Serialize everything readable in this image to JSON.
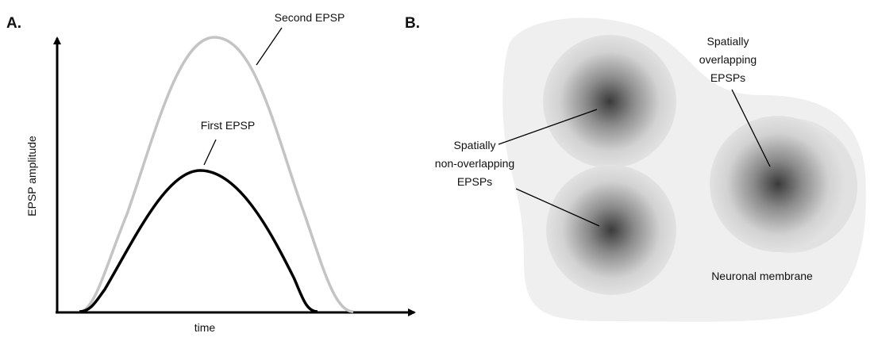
{
  "panel_a": {
    "label": "A.",
    "y_axis_label": "EPSP amplitude",
    "x_axis_label": "time",
    "curves": [
      {
        "name": "Second EPSP"
      },
      {
        "name": "First EPSP"
      }
    ]
  },
  "panel_b": {
    "label": "B.",
    "annotations": [
      {
        "lines": [
          "Spatially",
          "non-overlapping",
          "EPSPs"
        ]
      },
      {
        "lines": [
          "Spatially",
          "overlapping",
          "EPSPs"
        ]
      }
    ],
    "membrane_label": "Neuronal membrane"
  }
}
